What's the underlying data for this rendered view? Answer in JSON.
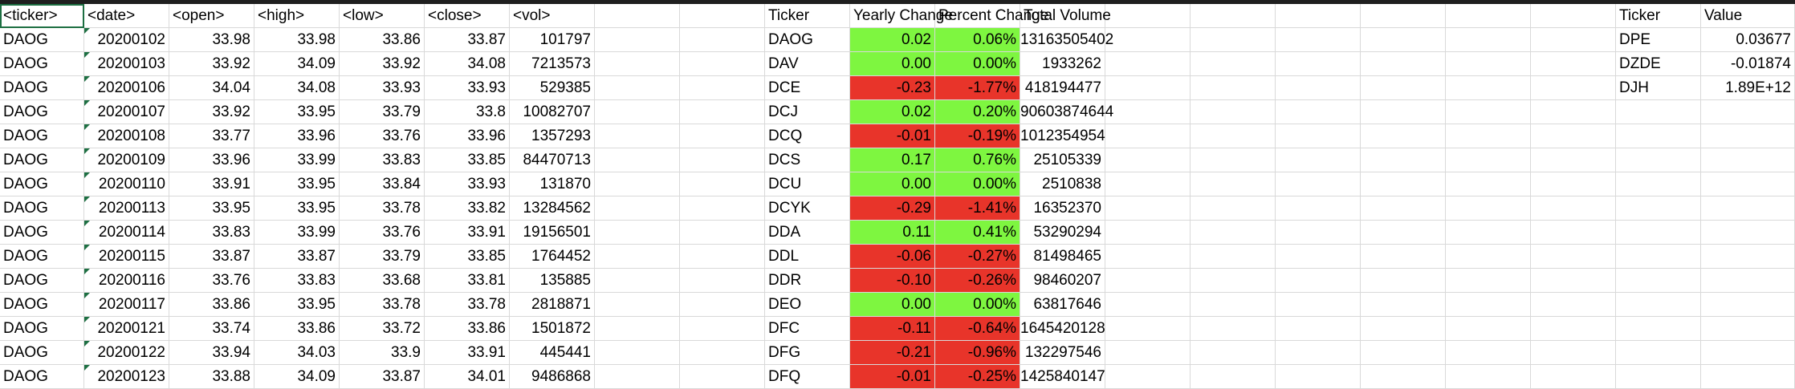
{
  "main_headers": [
    "<ticker>",
    "<date>",
    "<open>",
    "<high>",
    "<low>",
    "<close>",
    "<vol>"
  ],
  "main_rows": [
    [
      "DAOG",
      "20200102",
      "33.98",
      "33.98",
      "33.86",
      "33.87",
      "101797"
    ],
    [
      "DAOG",
      "20200103",
      "33.92",
      "34.09",
      "33.92",
      "34.08",
      "7213573"
    ],
    [
      "DAOG",
      "20200106",
      "34.04",
      "34.08",
      "33.93",
      "33.93",
      "529385"
    ],
    [
      "DAOG",
      "20200107",
      "33.92",
      "33.95",
      "33.79",
      "33.8",
      "10082707"
    ],
    [
      "DAOG",
      "20200108",
      "33.77",
      "33.96",
      "33.76",
      "33.96",
      "1357293"
    ],
    [
      "DAOG",
      "20200109",
      "33.96",
      "33.99",
      "33.83",
      "33.85",
      "84470713"
    ],
    [
      "DAOG",
      "20200110",
      "33.91",
      "33.95",
      "33.84",
      "33.93",
      "131870"
    ],
    [
      "DAOG",
      "20200113",
      "33.95",
      "33.95",
      "33.78",
      "33.82",
      "13284562"
    ],
    [
      "DAOG",
      "20200114",
      "33.83",
      "33.99",
      "33.76",
      "33.91",
      "19156501"
    ],
    [
      "DAOG",
      "20200115",
      "33.87",
      "33.87",
      "33.79",
      "33.85",
      "1764452"
    ],
    [
      "DAOG",
      "20200116",
      "33.76",
      "33.83",
      "33.68",
      "33.81",
      "135885"
    ],
    [
      "DAOG",
      "20200117",
      "33.86",
      "33.95",
      "33.78",
      "33.78",
      "2818871"
    ],
    [
      "DAOG",
      "20200121",
      "33.74",
      "33.86",
      "33.72",
      "33.86",
      "1501872"
    ],
    [
      "DAOG",
      "20200122",
      "33.94",
      "34.03",
      "33.9",
      "33.91",
      "445441"
    ],
    [
      "DAOG",
      "20200123",
      "33.88",
      "34.09",
      "33.87",
      "34.01",
      "9486868"
    ]
  ],
  "summary_headers": [
    "Ticker",
    "Yearly Change",
    "Percent Change",
    "Total Volume"
  ],
  "summary_rows": [
    {
      "ticker": "DAOG",
      "yearly": "0.02",
      "percent": "0.06%",
      "volume": "13163505402",
      "status": "positive"
    },
    {
      "ticker": "DAV",
      "yearly": "0.00",
      "percent": "0.00%",
      "volume": "1933262",
      "status": "positive"
    },
    {
      "ticker": "DCE",
      "yearly": "-0.23",
      "percent": "-1.77%",
      "volume": "418194477",
      "status": "negative"
    },
    {
      "ticker": "DCJ",
      "yearly": "0.02",
      "percent": "0.20%",
      "volume": "90603874644",
      "status": "positive"
    },
    {
      "ticker": "DCQ",
      "yearly": "-0.01",
      "percent": "-0.19%",
      "volume": "1012354954",
      "status": "negative"
    },
    {
      "ticker": "DCS",
      "yearly": "0.17",
      "percent": "0.76%",
      "volume": "25105339",
      "status": "positive"
    },
    {
      "ticker": "DCU",
      "yearly": "0.00",
      "percent": "0.00%",
      "volume": "2510838",
      "status": "positive"
    },
    {
      "ticker": "DCYK",
      "yearly": "-0.29",
      "percent": "-1.41%",
      "volume": "16352370",
      "status": "negative"
    },
    {
      "ticker": "DDA",
      "yearly": "0.11",
      "percent": "0.41%",
      "volume": "53290294",
      "status": "positive"
    },
    {
      "ticker": "DDL",
      "yearly": "-0.06",
      "percent": "-0.27%",
      "volume": "81498465",
      "status": "negative"
    },
    {
      "ticker": "DDR",
      "yearly": "-0.10",
      "percent": "-0.26%",
      "volume": "98460207",
      "status": "negative"
    },
    {
      "ticker": "DEO",
      "yearly": "0.00",
      "percent": "0.00%",
      "volume": "63817646",
      "status": "positive"
    },
    {
      "ticker": "DFC",
      "yearly": "-0.11",
      "percent": "-0.64%",
      "volume": "1645420128",
      "status": "negative"
    },
    {
      "ticker": "DFG",
      "yearly": "-0.21",
      "percent": "-0.96%",
      "volume": "132297546",
      "status": "negative"
    },
    {
      "ticker": "DFQ",
      "yearly": "-0.01",
      "percent": "-0.25%",
      "volume": "1425840147",
      "status": "negative"
    }
  ],
  "greatest_headers": [
    "Ticker",
    "Value"
  ],
  "greatest_rows": [
    [
      "DPE",
      "0.03677"
    ],
    [
      "DZDE",
      "-0.01874"
    ],
    [
      "DJH",
      "1.89E+12"
    ]
  ],
  "colors": {
    "positive": "#7ef640",
    "negative": "#e8342a",
    "selection": "#1d6f42"
  }
}
